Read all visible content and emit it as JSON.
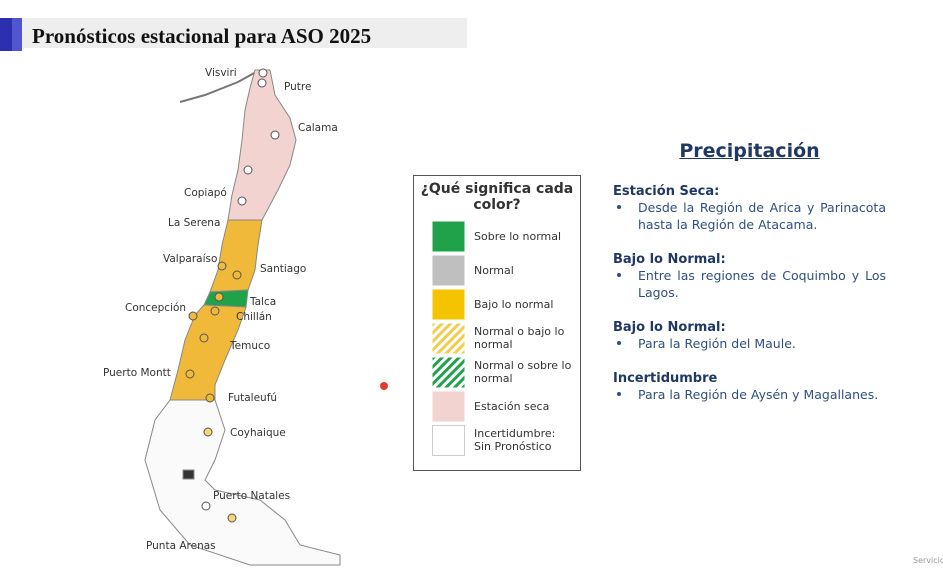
{
  "header": {
    "title": "Pronósticos estacional para ASO 2025"
  },
  "map": {
    "cities": [
      "Visviri",
      "Putre",
      "Calama",
      "Copiapó",
      "La Serena",
      "Valparaíso",
      "Santiago",
      "Talca",
      "Chillán",
      "Concepción",
      "Temuco",
      "Puerto Montt",
      "Futaleufú",
      "Coyhaique",
      "Puerto Natales",
      "Punta Arenas"
    ]
  },
  "legend": {
    "title": "¿Qué significa cada color?",
    "items": [
      "Sobre lo normal",
      "Normal",
      "Bajo lo normal",
      "Normal o bajo lo normal",
      "Normal o sobre lo normal",
      "Estación seca",
      "Incertidumbre: Sin Pronóstico"
    ]
  },
  "panel": {
    "heading": "Precipitación",
    "sections": [
      {
        "title": "Estación Seca:",
        "bullets": [
          "Desde la Región de Arica y Parinacota hasta la Región de Atacama."
        ]
      },
      {
        "title": "Bajo lo Normal:",
        "bullets": [
          "Entre las regiones de Coquimbo y Los Lagos."
        ]
      },
      {
        "title": "Bajo lo Normal:",
        "bullets": [
          "Para la Región del Maule."
        ]
      },
      {
        "title": "Incertidumbre",
        "bullets": [
          "Para la Región de Aysén y Magallanes."
        ]
      }
    ]
  },
  "footer": {
    "text": "Servicio"
  }
}
